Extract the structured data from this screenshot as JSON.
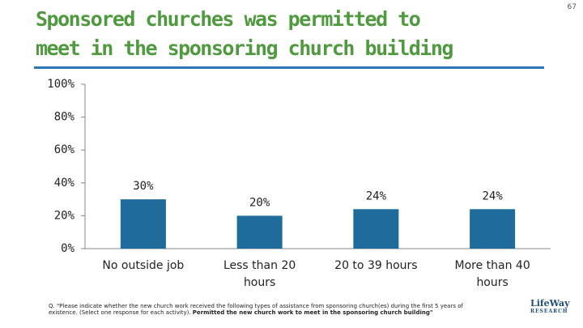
{
  "page_number": "67",
  "chart_data": {
    "type": "bar",
    "title": "Sponsored churches was permitted to meet in the sponsoring church building",
    "categories": [
      "No outside job",
      "Less than 20 hours",
      "20 to 39 hours",
      "More than 40 hours"
    ],
    "values": [
      30,
      20,
      24,
      24
    ],
    "value_labels": [
      "30%",
      "20%",
      "24%",
      "24%"
    ],
    "color": "#1f6b9b",
    "ylim": [
      0,
      100
    ],
    "yticks": [
      {
        "value": 0,
        "label": "0%"
      },
      {
        "value": 20,
        "label": "20%"
      },
      {
        "value": 40,
        "label": "40%"
      },
      {
        "value": 60,
        "label": "60%"
      },
      {
        "value": 80,
        "label": "80%"
      },
      {
        "value": 100,
        "label": "100%"
      }
    ],
    "grid": false
  },
  "footnote": {
    "text": "Q. \"Please indicate whether the new church work received the following types of assistance from sponsoring church(es) during the first 5 years of existence. (Select one response for each activity).",
    "bold": "Permitted the new church work to meet in the sponsoring church building\""
  },
  "logo": {
    "name": "LifeWay",
    "sub": "RESEARCH"
  }
}
